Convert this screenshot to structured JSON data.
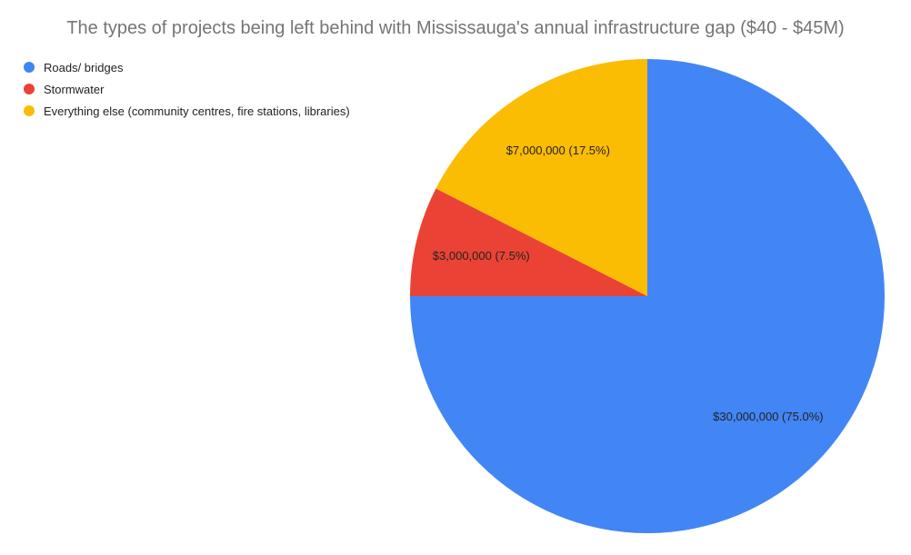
{
  "chart_data": {
    "type": "pie",
    "title": "The types of projects being left behind with Mississauga's annual infrastructure gap ($40 - $45M)",
    "slices": [
      {
        "name": "Roads/ bridges",
        "value": 30000000,
        "percent": 75.0,
        "label": "$30,000,000 (75.0%)",
        "color": "#4285F4"
      },
      {
        "name": "Stormwater",
        "value": 3000000,
        "percent": 7.5,
        "label": "$3,000,000 (7.5%)",
        "color": "#EA4335"
      },
      {
        "name": "Everything else (community centres, fire stations, libraries)",
        "value": 7000000,
        "percent": 17.5,
        "label": "$7,000,000 (17.5%)",
        "color": "#FBBC04"
      }
    ],
    "legend_position": "top-left",
    "start_angle": "12 o'clock",
    "direction": "clockwise"
  }
}
